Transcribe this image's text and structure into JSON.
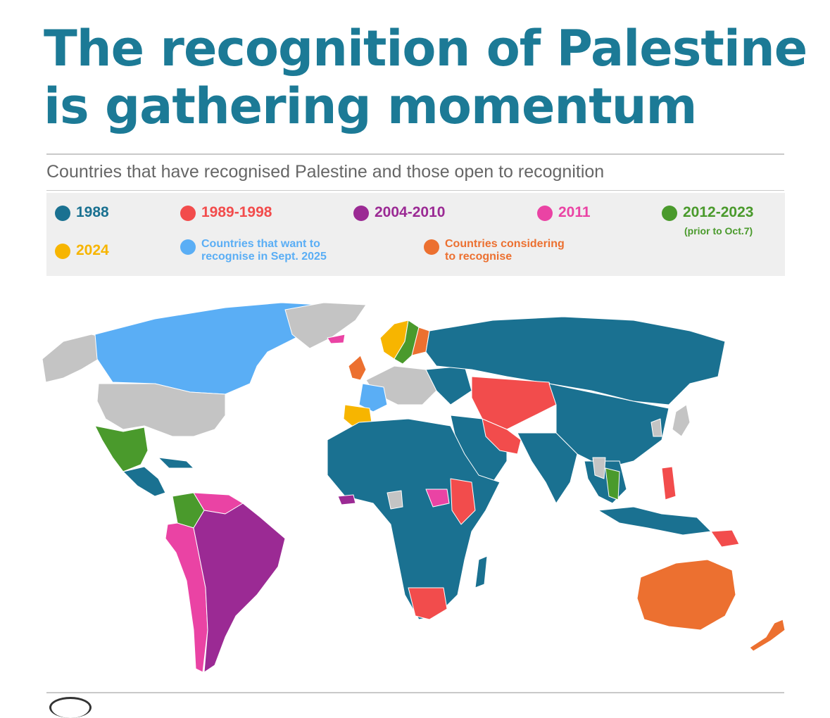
{
  "title_line1": "The recognition of Palestine",
  "title_line2": "is gathering momentum",
  "subtitle": "Countries that have recognised Palestine and those open to recognition",
  "legend": [
    {
      "label": "1988",
      "color": "#1a7191"
    },
    {
      "label": "1989-1998",
      "color": "#f24c4c"
    },
    {
      "label": "2004-2010",
      "color": "#9b2a94"
    },
    {
      "label": "2011",
      "color": "#ea43a4"
    },
    {
      "label": "2012-2023",
      "color": "#4a9a2c",
      "note": "(prior to Oct.7)"
    },
    {
      "label": "2024",
      "color": "#f7b500"
    },
    {
      "label_line1": "Countries that want to",
      "label_line2": "recognise in Sept. 2025",
      "color": "#5aaef5"
    },
    {
      "label_line1": "Countries considering",
      "label_line2": "to recognise",
      "color": "#ec7030"
    }
  ],
  "colors": {
    "title": "#1c7a96",
    "no_recognition": "#c4c4c4",
    "ocean": "#ffffff"
  }
}
